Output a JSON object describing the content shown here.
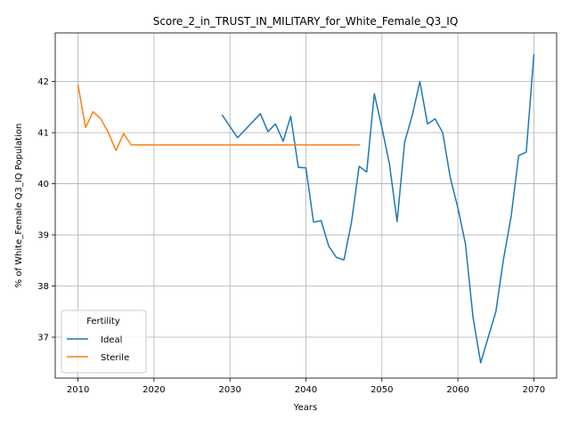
{
  "chart_data": {
    "type": "line",
    "title": "Score_2_in_TRUST_IN_MILITARY_for_White_Female_Q3_IQ",
    "xlabel": "Years",
    "ylabel": "% of White_Female Q3_IQ Population",
    "xlim": [
      2007,
      2073
    ],
    "ylim": [
      36.2,
      42.95
    ],
    "x_ticks": [
      2010,
      2020,
      2030,
      2040,
      2050,
      2060,
      2070
    ],
    "y_ticks": [
      37,
      38,
      39,
      40,
      41,
      42
    ],
    "grid": true,
    "legend": {
      "title": "Fertility",
      "position": "lower-left"
    },
    "series": [
      {
        "name": "Ideal",
        "color": "#1f77b4",
        "x": [
          2029,
          2031,
          2034,
          2035,
          2036,
          2037,
          2038,
          2039,
          2040,
          2041,
          2042,
          2043,
          2044,
          2045,
          2046,
          2047,
          2048,
          2049,
          2050,
          2051,
          2052,
          2053,
          2054,
          2055,
          2056,
          2057,
          2058,
          2059,
          2060,
          2061,
          2062,
          2063,
          2064,
          2065,
          2066,
          2067,
          2068,
          2069,
          2070
        ],
        "values": [
          41.34,
          40.9,
          41.37,
          41.02,
          41.17,
          40.83,
          41.32,
          40.32,
          40.31,
          39.25,
          39.28,
          38.78,
          38.56,
          38.51,
          39.25,
          40.34,
          40.23,
          41.76,
          41.1,
          40.38,
          39.26,
          40.82,
          41.34,
          42.0,
          41.17,
          41.27,
          41.0,
          40.12,
          39.53,
          38.82,
          37.38,
          36.5,
          37.0,
          37.5,
          38.52,
          39.35,
          40.55,
          40.62,
          42.52
        ]
      },
      {
        "name": "Sterile",
        "color": "#ff7f0e",
        "x": [
          2010,
          2011,
          2012,
          2013,
          2014,
          2015,
          2016,
          2017,
          2018,
          2020,
          2025,
          2030,
          2035,
          2040,
          2045,
          2047
        ],
        "values": [
          41.93,
          41.1,
          41.41,
          41.27,
          41.0,
          40.65,
          40.98,
          40.76,
          40.76,
          40.76,
          40.76,
          40.76,
          40.76,
          40.76,
          40.76,
          40.76
        ]
      }
    ]
  }
}
